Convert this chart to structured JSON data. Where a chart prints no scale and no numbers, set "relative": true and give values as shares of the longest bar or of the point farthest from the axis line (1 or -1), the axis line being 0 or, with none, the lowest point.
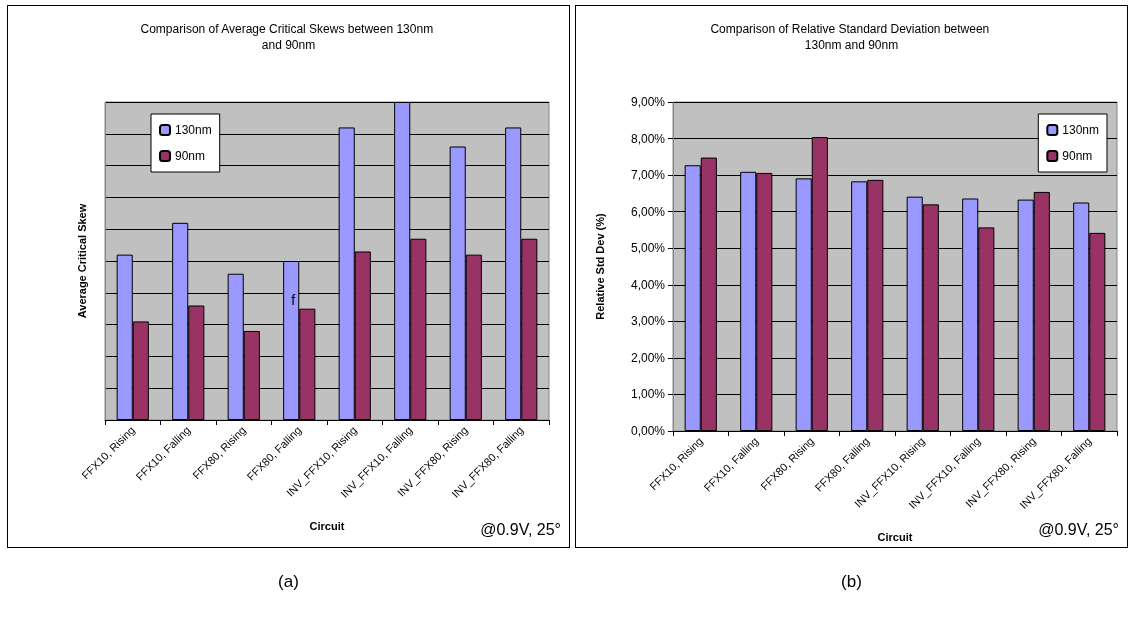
{
  "chart_data": [
    {
      "type": "bar",
      "title": "Comparison of Average Critical Skews between 130nm and 90nm",
      "xlabel": "Circuit",
      "ylabel": "Average Critical Skew",
      "relative": true,
      "grid": "y",
      "legend": "top left",
      "categories": [
        "FFX10, Rising",
        "FFX10, Falling",
        "FFX80, Rising",
        "FFX80, Falling",
        "INV_FFX10, Rising",
        "INV_FFX10, Falling",
        "INV_FFX80, Rising",
        "INV_FFX80, Falling"
      ],
      "series": [
        {
          "name": "130nm",
          "color": "#9999ff",
          "values": [
            0.52,
            0.62,
            0.46,
            0.5,
            0.92,
            1,
            0.86,
            0.92
          ]
        },
        {
          "name": "90nm",
          "color": "#993366",
          "values": [
            0.31,
            0.36,
            0.28,
            0.35,
            0.53,
            0.57,
            0.52,
            0.57
          ]
        }
      ],
      "annotations": [
        "f",
        "@0.9V, 25°",
        "(a)"
      ]
    },
    {
      "type": "bar",
      "title": "Comparison of Relative Standard Deviation between 130nm and 90nm",
      "xlabel": "Circuit",
      "ylabel": "Relative Std Dev (%)",
      "grid": "y",
      "legend": "top right",
      "ylim": [
        0,
        9
      ],
      "yticks": [
        {
          "value": 0,
          "label": "0,00%"
        },
        {
          "value": 1,
          "label": "1,00%"
        },
        {
          "value": 2,
          "label": "2,00%"
        },
        {
          "value": 3,
          "label": "3,00%"
        },
        {
          "value": 4,
          "label": "4,00%"
        },
        {
          "value": 5,
          "label": "5,00%"
        },
        {
          "value": 6,
          "label": "6,00%"
        },
        {
          "value": 7,
          "label": "7,00%"
        },
        {
          "value": 8,
          "label": "8,00%"
        },
        {
          "value": 9,
          "label": "9,00%"
        }
      ],
      "categories": [
        "FFX10, Rising",
        "FFX10, Falling",
        "FFX80, Rising",
        "FFX80, Falling",
        "INV_FFX10, Rising",
        "INV_FFX10, Falling",
        "INV_FFX80, Rising",
        "INV_FFX80, Falling"
      ],
      "series": [
        {
          "name": "130nm",
          "color": "#9999ff",
          "values": [
            7.27,
            7.09,
            6.91,
            6.83,
            6.41,
            6.36,
            6.33,
            6.25
          ]
        },
        {
          "name": "90nm",
          "color": "#993366",
          "values": [
            7.48,
            7.06,
            8.04,
            6.87,
            6.2,
            5.57,
            6.54,
            5.42
          ]
        }
      ],
      "annotations": [
        "@0.9V, 25°",
        "(b)"
      ]
    }
  ]
}
